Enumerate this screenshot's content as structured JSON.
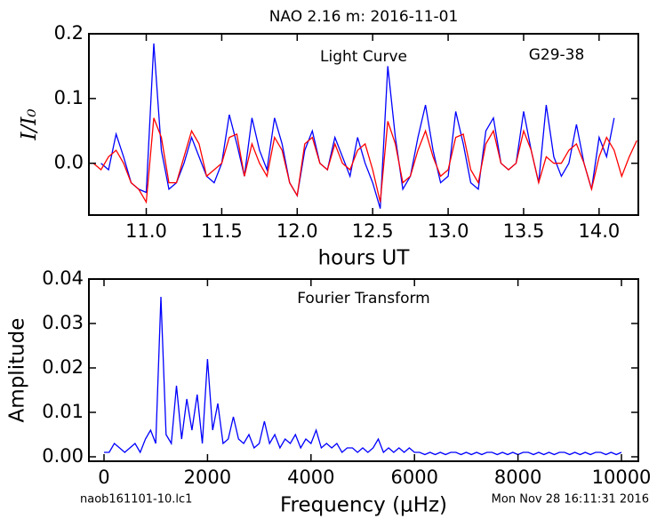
{
  "chart_data": [
    {
      "type": "line",
      "title": "NAO 2.16 m:  2016-11-01",
      "annotations": [
        "Light Curve",
        "G29-38"
      ],
      "xlabel": "hours UT",
      "ylabel": "I/I₀",
      "xlim": [
        10.62,
        14.26
      ],
      "ylim": [
        -0.08,
        0.2
      ],
      "xticks": [
        {
          "value": 11,
          "label": "11.0"
        },
        {
          "value": 11.5,
          "label": "11.5"
        },
        {
          "value": 12,
          "label": "12.0"
        },
        {
          "value": 12.5,
          "label": "12.5"
        },
        {
          "value": 13,
          "label": "13.0"
        },
        {
          "value": 13.5,
          "label": "13.5"
        },
        {
          "value": 14,
          "label": "14.0"
        }
      ],
      "yticks": [
        {
          "value": 0,
          "label": "0.0"
        },
        0.1,
        0.2
      ],
      "x": [
        10.65,
        10.7,
        10.75,
        10.8,
        10.85,
        10.9,
        10.95,
        11,
        11.05,
        11.1,
        11.15,
        11.2,
        11.25,
        11.3,
        11.35,
        11.4,
        11.45,
        11.5,
        11.55,
        11.6,
        11.65,
        11.7,
        11.75,
        11.8,
        11.85,
        11.9,
        11.95,
        12,
        12.05,
        12.1,
        12.15,
        12.2,
        12.25,
        12.3,
        12.35,
        12.4,
        12.45,
        12.5,
        12.55,
        12.6,
        12.65,
        12.7,
        12.75,
        12.8,
        12.85,
        12.9,
        12.95,
        13,
        13.05,
        13.1,
        13.15,
        13.2,
        13.25,
        13.3,
        13.35,
        13.4,
        13.45,
        13.5,
        13.55,
        13.6,
        13.65,
        13.7,
        13.75,
        13.8,
        13.85,
        13.9,
        13.95,
        14,
        14.05,
        14.1,
        14.15,
        14.2,
        14.25
      ],
      "series": [
        {
          "name": "data",
          "color": "#0000ff",
          "values": [
            null,
            0,
            -0.01,
            0.045,
            0.01,
            -0.03,
            -0.04,
            -0.045,
            0.185,
            0.02,
            -0.04,
            -0.03,
            0,
            0.04,
            0.01,
            -0.02,
            -0.03,
            0,
            0.075,
            0.03,
            -0.02,
            0.07,
            0.02,
            -0.01,
            0.07,
            0.03,
            -0.03,
            -0.05,
            0.02,
            0.05,
            0,
            -0.01,
            0.04,
            0.01,
            -0.02,
            0.04,
            0,
            -0.03,
            -0.07,
            0.15,
            0.04,
            -0.04,
            -0.02,
            0.04,
            0.09,
            0.02,
            -0.03,
            -0.02,
            0.08,
            0.03,
            -0.03,
            -0.04,
            0.05,
            0.07,
            0,
            -0.01,
            0,
            0.08,
            0.02,
            -0.03,
            0.09,
            0.01,
            -0.02,
            0,
            0.06,
            0,
            -0.04,
            0.04,
            0.01,
            0.07,
            null,
            null,
            null
          ]
        },
        {
          "name": "fit",
          "color": "#ff0000",
          "values": [
            0,
            -0.01,
            0.01,
            0.02,
            0,
            -0.03,
            -0.04,
            -0.06,
            0.07,
            0.04,
            -0.03,
            -0.03,
            0.01,
            0.05,
            0.03,
            -0.02,
            -0.01,
            0,
            0.04,
            0.045,
            -0.02,
            0.03,
            0,
            -0.02,
            0.04,
            0.02,
            -0.03,
            -0.05,
            0.03,
            0.04,
            0,
            -0.01,
            0.03,
            0,
            -0.01,
            0.02,
            0.03,
            -0.01,
            -0.06,
            0.065,
            0.03,
            -0.03,
            -0.02,
            0.02,
            0.05,
            0.01,
            -0.02,
            -0.01,
            0.04,
            0.045,
            -0.01,
            -0.03,
            0.03,
            0.05,
            0,
            -0.01,
            0,
            0.05,
            0.02,
            -0.03,
            0.01,
            0,
            0,
            0.02,
            0.03,
            0,
            -0.04,
            0.01,
            0.04,
            0.02,
            -0.02,
            0.01,
            0.035
          ]
        }
      ]
    },
    {
      "type": "line",
      "annotations": [
        "Fourier Transform"
      ],
      "xlabel": "Frequency (μHz)",
      "ylabel": "Amplitude",
      "xlim": [
        -292,
        10326
      ],
      "ylim": [
        -0.001,
        0.04
      ],
      "xticks": [
        0,
        2000,
        4000,
        6000,
        8000,
        10000
      ],
      "yticks": [
        {
          "value": 0,
          "label": "0.00"
        },
        0.01,
        0.02,
        0.03,
        0.04
      ],
      "x": [
        0,
        100,
        200,
        300,
        400,
        500,
        600,
        700,
        800,
        900,
        1000,
        1100,
        1200,
        1300,
        1400,
        1500,
        1600,
        1700,
        1800,
        1900,
        2000,
        2100,
        2200,
        2300,
        2400,
        2500,
        2600,
        2700,
        2800,
        2900,
        3000,
        3100,
        3200,
        3300,
        3400,
        3500,
        3600,
        3700,
        3800,
        3900,
        4000,
        4100,
        4200,
        4300,
        4400,
        4500,
        4600,
        4700,
        4800,
        4900,
        5000,
        5100,
        5200,
        5300,
        5400,
        5500,
        5600,
        5700,
        5800,
        5900,
        6000,
        6100,
        6200,
        6300,
        6400,
        6500,
        6600,
        6700,
        6800,
        6900,
        7000,
        7100,
        7200,
        7300,
        7400,
        7500,
        7600,
        7700,
        7800,
        7900,
        8000,
        8100,
        8200,
        8300,
        8400,
        8500,
        8600,
        8700,
        8800,
        8900,
        9000,
        9100,
        9200,
        9300,
        9400,
        9500,
        9600,
        9700,
        9800,
        9900,
        10000
      ],
      "series": [
        {
          "name": "amplitude",
          "color": "#0000ff",
          "values": [
            0.001,
            0.001,
            0.003,
            0.002,
            0.001,
            0.002,
            0.003,
            0.001,
            0.004,
            0.006,
            0.003,
            0.036,
            0.005,
            0.003,
            0.016,
            0.004,
            0.013,
            0.006,
            0.014,
            0.003,
            0.022,
            0.006,
            0.012,
            0.003,
            0.004,
            0.009,
            0.004,
            0.003,
            0.005,
            0.002,
            0.003,
            0.008,
            0.003,
            0.005,
            0.002,
            0.004,
            0.003,
            0.005,
            0.002,
            0.004,
            0.003,
            0.006,
            0.002,
            0.003,
            0.002,
            0.003,
            0.001,
            0.002,
            0.002,
            0.001,
            0.002,
            0.001,
            0.002,
            0.004,
            0.001,
            0.002,
            0.001,
            0.002,
            0.001,
            0.002,
            0.001,
            0.001,
            0.0005,
            0.001,
            0.0005,
            0.001,
            0.0005,
            0.001,
            0.001,
            0.0005,
            0.001,
            0.0005,
            0.001,
            0.0005,
            0.001,
            0.001,
            0.0005,
            0.001,
            0.0005,
            0.001,
            0.0005,
            0.001,
            0.001,
            0.0005,
            0.001,
            0.0005,
            0.001,
            0.0005,
            0.001,
            0.001,
            0.0005,
            0.001,
            0.0005,
            0.001,
            0.0005,
            0.001,
            0.001,
            0.0005,
            0.001,
            0.0005,
            0.001
          ]
        }
      ]
    }
  ],
  "footer": {
    "left": "naob161101-10.lc1",
    "right": "Mon Nov 28 16:11:31 2016"
  }
}
